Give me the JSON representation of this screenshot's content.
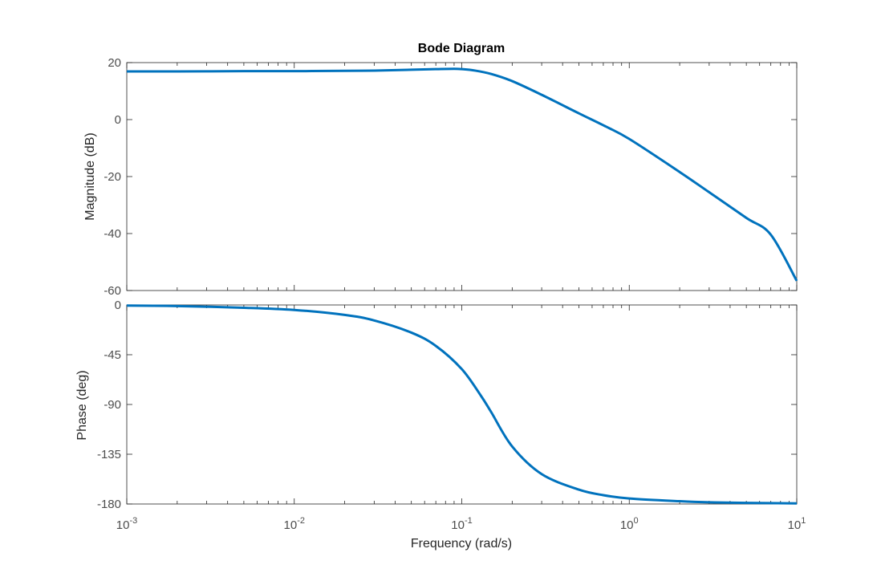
{
  "chart_data": {
    "type": "line",
    "title": "Bode Diagram",
    "xlabel": "Frequency  (rad/s)",
    "x_scale": "log",
    "xlim": [
      0.001,
      10
    ],
    "x_ticks": [
      {
        "base": "10",
        "exp": "-3"
      },
      {
        "base": "10",
        "exp": "-2"
      },
      {
        "base": "10",
        "exp": "-1"
      },
      {
        "base": "10",
        "exp": "0"
      },
      {
        "base": "10",
        "exp": "1"
      }
    ],
    "grid": false,
    "colors": {
      "line": "#0072bd",
      "axes": "#262626",
      "ticks": "#4d4d4d"
    },
    "panels": [
      {
        "name": "magnitude",
        "ylabel": "Magnitude (dB)",
        "ylim": [
          -60,
          20
        ],
        "yticks": [
          "20",
          "0",
          "-20",
          "-40",
          "-60"
        ],
        "ytick_values": [
          20,
          0,
          -20,
          -40,
          -60
        ],
        "series": [
          {
            "x": [
              0.001,
              0.002,
              0.005,
              0.01,
              0.02,
              0.03,
              0.05,
              0.07,
              0.09,
              0.1,
              0.12,
              0.15,
              0.2,
              0.3,
              0.5,
              0.7,
              1,
              2,
              3,
              5,
              7,
              10
            ],
            "values": [
              16.9,
              16.9,
              17.0,
              17.0,
              17.1,
              17.2,
              17.5,
              17.7,
              17.8,
              17.7,
              17.2,
              16.0,
              13.5,
              8.7,
              2.2,
              -2.0,
              -6.8,
              -18.4,
              -25.5,
              -34.5,
              -40.4,
              -56.6
            ]
          }
        ]
      },
      {
        "name": "phase",
        "ylabel": "Phase (deg)",
        "ylim": [
          -180,
          0
        ],
        "yticks": [
          "0",
          "-45",
          "-90",
          "-135",
          "-180"
        ],
        "ytick_values": [
          0,
          -45,
          -90,
          -135,
          -180
        ],
        "series": [
          {
            "x": [
              0.001,
              0.002,
              0.005,
              0.01,
              0.02,
              0.03,
              0.05,
              0.07,
              0.1,
              0.13,
              0.15,
              0.2,
              0.3,
              0.5,
              0.7,
              1,
              2,
              3,
              5,
              10
            ],
            "values": [
              -0.5,
              -1,
              -2.5,
              -4.5,
              -9,
              -14,
              -25,
              -37,
              -58,
              -82,
              -97,
              -128,
              -153,
              -167,
              -172,
              -175,
              -177.5,
              -178.5,
              -179,
              -179.5
            ]
          }
        ]
      }
    ]
  }
}
